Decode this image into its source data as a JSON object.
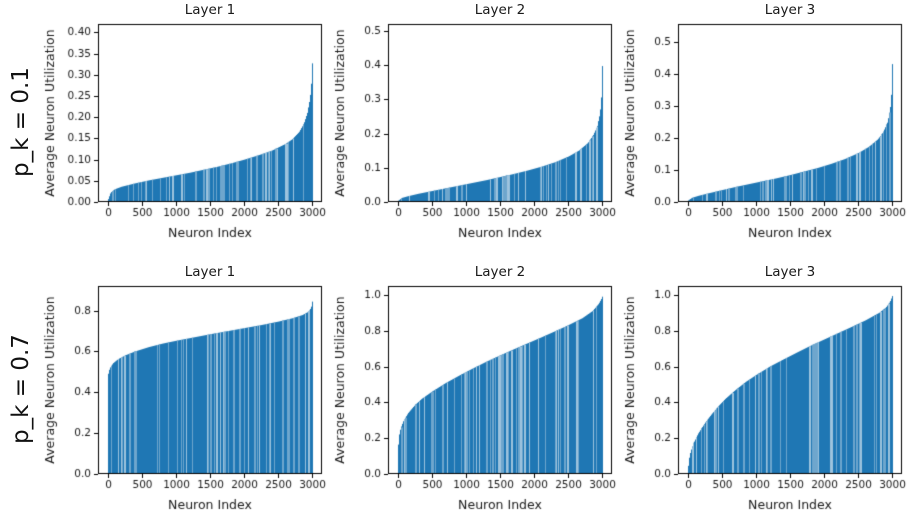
{
  "rows": [
    {
      "label": "p_k = 0.1"
    },
    {
      "label": "p_k = 0.7"
    }
  ],
  "colors": {
    "bar": "#1f77b4",
    "stripe_light": "#6ea6cd",
    "stripe_lighter": "#9dc3de",
    "spine": "#000000",
    "text": "#1a1a1a"
  },
  "chart_data": [
    {
      "type": "bar",
      "title": "Layer 1",
      "xlabel": "Neuron Index",
      "ylabel": "Average Neuron Utilization",
      "xlim": [
        -140,
        3140
      ],
      "ylim": [
        0,
        0.42
      ],
      "xticks": [
        0,
        500,
        1000,
        1500,
        2000,
        2500,
        3000
      ],
      "yticks": [
        0.0,
        0.05,
        0.1,
        0.15,
        0.2,
        0.25,
        0.3,
        0.35,
        0.4
      ],
      "ytick_decimals": 2,
      "n_bars": 3000,
      "points": [
        [
          0,
          0.004
        ],
        [
          40,
          0.022
        ],
        [
          100,
          0.03
        ],
        [
          200,
          0.036
        ],
        [
          400,
          0.044
        ],
        [
          600,
          0.051
        ],
        [
          800,
          0.057
        ],
        [
          1000,
          0.063
        ],
        [
          1200,
          0.069
        ],
        [
          1400,
          0.076
        ],
        [
          1600,
          0.083
        ],
        [
          1800,
          0.091
        ],
        [
          2000,
          0.1
        ],
        [
          2200,
          0.11
        ],
        [
          2400,
          0.121
        ],
        [
          2600,
          0.137
        ],
        [
          2700,
          0.148
        ],
        [
          2800,
          0.165
        ],
        [
          2870,
          0.185
        ],
        [
          2920,
          0.21
        ],
        [
          2960,
          0.245
        ],
        [
          2985,
          0.29
        ],
        [
          3000,
          0.355
        ]
      ]
    },
    {
      "type": "bar",
      "title": "Layer 2",
      "xlabel": "Neuron Index",
      "ylabel": "Average Neuron Utilization",
      "xlim": [
        -140,
        3140
      ],
      "ylim": [
        0,
        0.52
      ],
      "xticks": [
        0,
        500,
        1000,
        1500,
        2000,
        2500,
        3000
      ],
      "yticks": [
        0.0,
        0.1,
        0.2,
        0.3,
        0.4,
        0.5
      ],
      "ytick_decimals": 1,
      "n_bars": 3000,
      "points": [
        [
          0,
          0.003
        ],
        [
          60,
          0.012
        ],
        [
          150,
          0.017
        ],
        [
          300,
          0.024
        ],
        [
          500,
          0.032
        ],
        [
          700,
          0.04
        ],
        [
          900,
          0.048
        ],
        [
          1100,
          0.056
        ],
        [
          1300,
          0.064
        ],
        [
          1500,
          0.073
        ],
        [
          1700,
          0.082
        ],
        [
          1900,
          0.092
        ],
        [
          2100,
          0.103
        ],
        [
          2300,
          0.116
        ],
        [
          2500,
          0.133
        ],
        [
          2650,
          0.15
        ],
        [
          2780,
          0.172
        ],
        [
          2860,
          0.195
        ],
        [
          2920,
          0.222
        ],
        [
          2960,
          0.26
        ],
        [
          2985,
          0.32
        ],
        [
          3000,
          0.455
        ]
      ]
    },
    {
      "type": "bar",
      "title": "Layer 3",
      "xlabel": "Neuron Index",
      "ylabel": "Average Neuron Utilization",
      "xlim": [
        -140,
        3140
      ],
      "ylim": [
        0,
        0.555
      ],
      "xticks": [
        0,
        500,
        1000,
        1500,
        2000,
        2500,
        3000
      ],
      "yticks": [
        0.0,
        0.1,
        0.2,
        0.3,
        0.4,
        0.5
      ],
      "ytick_decimals": 1,
      "n_bars": 3000,
      "points": [
        [
          0,
          0.004
        ],
        [
          60,
          0.013
        ],
        [
          150,
          0.019
        ],
        [
          300,
          0.027
        ],
        [
          500,
          0.037
        ],
        [
          700,
          0.047
        ],
        [
          900,
          0.056
        ],
        [
          1100,
          0.065
        ],
        [
          1300,
          0.074
        ],
        [
          1500,
          0.084
        ],
        [
          1700,
          0.095
        ],
        [
          1900,
          0.106
        ],
        [
          2100,
          0.119
        ],
        [
          2300,
          0.134
        ],
        [
          2500,
          0.153
        ],
        [
          2650,
          0.172
        ],
        [
          2780,
          0.195
        ],
        [
          2860,
          0.218
        ],
        [
          2920,
          0.247
        ],
        [
          2960,
          0.285
        ],
        [
          2985,
          0.35
        ],
        [
          3000,
          0.49
        ]
      ]
    },
    {
      "type": "bar",
      "title": "Layer 1",
      "xlabel": "Neuron Index",
      "ylabel": "Average Neuron Utilization",
      "xlim": [
        -140,
        3140
      ],
      "ylim": [
        0,
        0.92
      ],
      "xticks": [
        0,
        500,
        1000,
        1500,
        2000,
        2500,
        3000
      ],
      "yticks": [
        0.0,
        0.2,
        0.4,
        0.6,
        0.8
      ],
      "ytick_decimals": 1,
      "n_bars": 3000,
      "points": [
        [
          0,
          0.48
        ],
        [
          15,
          0.505
        ],
        [
          40,
          0.525
        ],
        [
          80,
          0.543
        ],
        [
          150,
          0.562
        ],
        [
          250,
          0.58
        ],
        [
          400,
          0.6
        ],
        [
          600,
          0.621
        ],
        [
          800,
          0.638
        ],
        [
          1000,
          0.652
        ],
        [
          1250,
          0.668
        ],
        [
          1500,
          0.684
        ],
        [
          1750,
          0.699
        ],
        [
          2000,
          0.714
        ],
        [
          2250,
          0.729
        ],
        [
          2500,
          0.746
        ],
        [
          2700,
          0.762
        ],
        [
          2850,
          0.778
        ],
        [
          2930,
          0.793
        ],
        [
          2970,
          0.81
        ],
        [
          2990,
          0.83
        ],
        [
          3000,
          0.868
        ]
      ]
    },
    {
      "type": "bar",
      "title": "Layer 2",
      "xlabel": "Neuron Index",
      "ylabel": "Average Neuron Utilization",
      "xlim": [
        -140,
        3140
      ],
      "ylim": [
        0,
        1.05
      ],
      "xticks": [
        0,
        500,
        1000,
        1500,
        2000,
        2500,
        3000
      ],
      "yticks": [
        0.0,
        0.2,
        0.4,
        0.6,
        0.8,
        1.0
      ],
      "ytick_decimals": 1,
      "n_bars": 3000,
      "points": [
        [
          0,
          0.13
        ],
        [
          15,
          0.21
        ],
        [
          40,
          0.255
        ],
        [
          80,
          0.295
        ],
        [
          150,
          0.34
        ],
        [
          250,
          0.385
        ],
        [
          350,
          0.42
        ],
        [
          500,
          0.46
        ],
        [
          700,
          0.508
        ],
        [
          900,
          0.55
        ],
        [
          1100,
          0.59
        ],
        [
          1300,
          0.628
        ],
        [
          1500,
          0.663
        ],
        [
          1700,
          0.697
        ],
        [
          1900,
          0.73
        ],
        [
          2100,
          0.763
        ],
        [
          2300,
          0.797
        ],
        [
          2500,
          0.832
        ],
        [
          2700,
          0.87
        ],
        [
          2850,
          0.91
        ],
        [
          2940,
          0.95
        ],
        [
          2990,
          0.985
        ],
        [
          3000,
          1.0
        ]
      ]
    },
    {
      "type": "bar",
      "title": "Layer 3",
      "xlabel": "Neuron Index",
      "ylabel": "Average Neuron Utilization",
      "xlim": [
        -140,
        3140
      ],
      "ylim": [
        0,
        1.05
      ],
      "xticks": [
        0,
        500,
        1000,
        1500,
        2000,
        2500,
        3000
      ],
      "yticks": [
        0.0,
        0.2,
        0.4,
        0.6,
        0.8,
        1.0
      ],
      "ytick_decimals": 1,
      "n_bars": 3000,
      "points": [
        [
          0,
          0.02
        ],
        [
          15,
          0.08
        ],
        [
          40,
          0.125
        ],
        [
          80,
          0.17
        ],
        [
          150,
          0.225
        ],
        [
          250,
          0.285
        ],
        [
          350,
          0.335
        ],
        [
          450,
          0.38
        ],
        [
          550,
          0.42
        ],
        [
          700,
          0.47
        ],
        [
          850,
          0.515
        ],
        [
          1000,
          0.553
        ],
        [
          1200,
          0.6
        ],
        [
          1400,
          0.64
        ],
        [
          1600,
          0.679
        ],
        [
          1800,
          0.717
        ],
        [
          2000,
          0.752
        ],
        [
          2200,
          0.787
        ],
        [
          2400,
          0.822
        ],
        [
          2600,
          0.858
        ],
        [
          2800,
          0.9
        ],
        [
          2900,
          0.93
        ],
        [
          2960,
          0.962
        ],
        [
          3000,
          1.0
        ]
      ]
    }
  ]
}
